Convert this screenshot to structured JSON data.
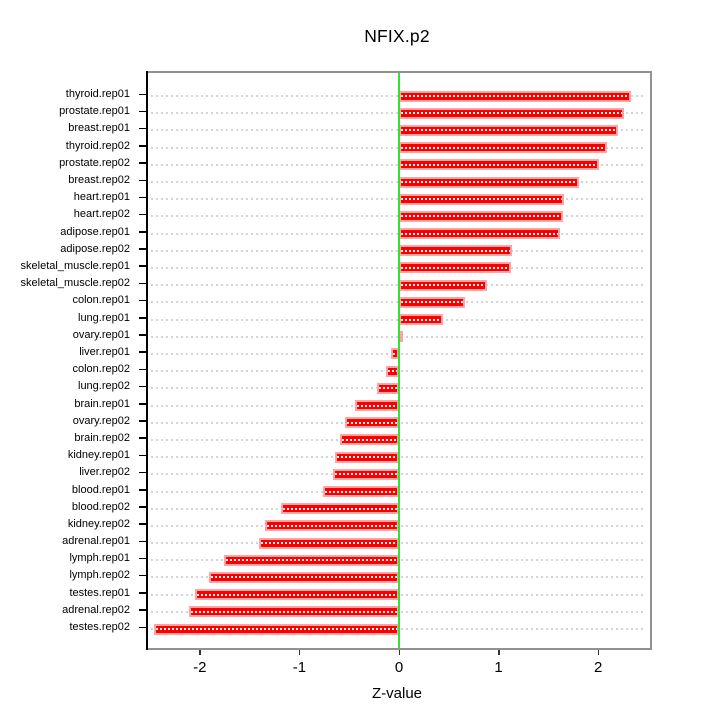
{
  "chart_data": {
    "type": "bar",
    "orientation": "horizontal",
    "title": "NFIX.p2",
    "xlabel": "Z-value",
    "xlim": [
      -2.52,
      2.52
    ],
    "xticks": [
      -2,
      -1,
      0,
      1,
      2
    ],
    "grid": true,
    "legend": "none",
    "categories": [
      "thyroid.rep01",
      "prostate.rep01",
      "breast.rep01",
      "thyroid.rep02",
      "prostate.rep02",
      "breast.rep02",
      "heart.rep01",
      "heart.rep02",
      "adipose.rep01",
      "adipose.rep02",
      "skeletal_muscle.rep01",
      "skeletal_muscle.rep02",
      "colon.rep01",
      "lung.rep01",
      "ovary.rep01",
      "liver.rep01",
      "colon.rep02",
      "lung.rep02",
      "brain.rep01",
      "ovary.rep02",
      "brain.rep02",
      "kidney.rep01",
      "liver.rep02",
      "blood.rep01",
      "blood.rep02",
      "kidney.rep02",
      "adrenal.rep01",
      "lymph.rep01",
      "lymph.rep02",
      "testes.rep01",
      "adrenal.rep02",
      "testes.rep02"
    ],
    "values": [
      2.33,
      2.26,
      2.2,
      2.09,
      2.01,
      1.81,
      1.66,
      1.65,
      1.62,
      1.13,
      1.12,
      0.88,
      0.66,
      0.44,
      0.04,
      -0.08,
      -0.13,
      -0.22,
      -0.44,
      -0.54,
      -0.59,
      -0.64,
      -0.66,
      -0.76,
      -1.19,
      -1.35,
      -1.41,
      -1.76,
      -1.91,
      -2.05,
      -2.11,
      -2.46
    ],
    "colors": {
      "bar_fill": "#fa0000",
      "bar_border": "#ffa3a3",
      "bar_dash": "#ffffff",
      "zero_line": "#33e033",
      "grid_dots": "#d4d4d4",
      "box_border": "#919191",
      "axis_line": "#000000",
      "text": "#000000"
    }
  }
}
